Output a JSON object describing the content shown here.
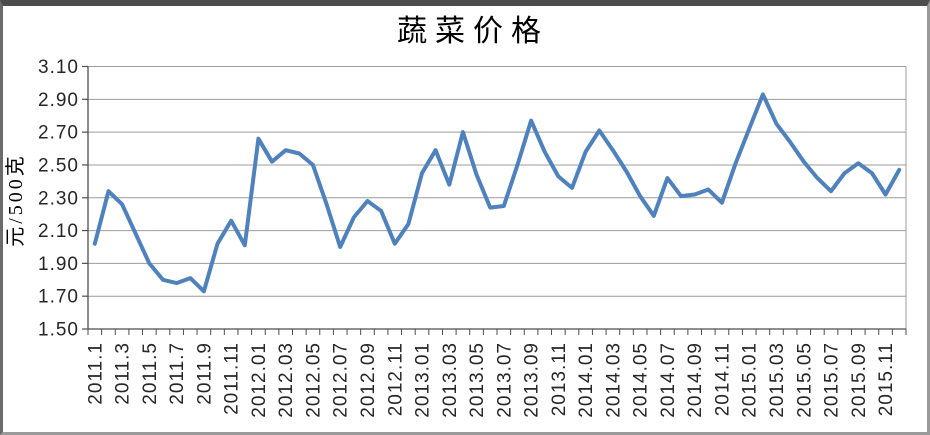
{
  "chart_data": {
    "type": "line",
    "title": "蔬菜价格",
    "xlabel": "",
    "ylabel": "元/500克",
    "ylim": [
      1.5,
      3.1
    ],
    "ytick_step": 0.2,
    "ytick_labels": [
      "3.10",
      "2.90",
      "2.70",
      "2.50",
      "2.30",
      "2.10",
      "1.90",
      "1.70",
      "1.50"
    ],
    "grid": true,
    "legend": false,
    "x_label_every": 2,
    "x_tick_labels": [
      "2011.1",
      "2011.3",
      "2011.5",
      "2011.7",
      "2011.9",
      "2011.11",
      "2012.01",
      "2012.03",
      "2012.05",
      "2012.07",
      "2012.09",
      "2012.11",
      "2013.01",
      "2013.03",
      "2013.05",
      "2013.07",
      "2013.09",
      "2013.11",
      "2014.01",
      "2014.03",
      "2014.05",
      "2014.07",
      "2014.09",
      "2014.11",
      "2015.01",
      "2015.03",
      "2015.05",
      "2015.07",
      "2015.09",
      "2015.11"
    ],
    "categories": [
      "2011.1",
      "2011.2",
      "2011.3",
      "2011.4",
      "2011.5",
      "2011.6",
      "2011.7",
      "2011.8",
      "2011.9",
      "2011.10",
      "2011.11",
      "2011.12",
      "2012.01",
      "2012.02",
      "2012.03",
      "2012.04",
      "2012.05",
      "2012.06",
      "2012.07",
      "2012.08",
      "2012.09",
      "2012.10",
      "2012.11",
      "2012.12",
      "2013.01",
      "2013.02",
      "2013.03",
      "2013.04",
      "2013.05",
      "2013.06",
      "2013.07",
      "2013.08",
      "2013.09",
      "2013.10",
      "2013.11",
      "2013.12",
      "2014.01",
      "2014.02",
      "2014.03",
      "2014.04",
      "2014.05",
      "2014.06",
      "2014.07",
      "2014.08",
      "2014.09",
      "2014.10",
      "2014.11",
      "2014.12",
      "2015.01",
      "2015.02",
      "2015.03",
      "2015.04",
      "2015.05",
      "2015.06",
      "2015.07",
      "2015.08",
      "2015.09",
      "2015.10",
      "2015.11",
      "2015.12"
    ],
    "series": [
      {
        "name": "蔬菜价格",
        "values": [
          2.02,
          2.34,
          2.26,
          2.08,
          1.9,
          1.8,
          1.78,
          1.81,
          1.73,
          2.02,
          2.16,
          2.01,
          2.66,
          2.52,
          2.59,
          2.57,
          2.5,
          2.26,
          2.0,
          2.18,
          2.28,
          2.22,
          2.02,
          2.14,
          2.45,
          2.59,
          2.38,
          2.7,
          2.44,
          2.24,
          2.25,
          2.5,
          2.77,
          2.58,
          2.43,
          2.36,
          2.58,
          2.71,
          2.59,
          2.46,
          2.31,
          2.19,
          2.42,
          2.31,
          2.32,
          2.35,
          2.27,
          2.51,
          2.72,
          2.93,
          2.75,
          2.64,
          2.52,
          2.42,
          2.34,
          2.45,
          2.51,
          2.45,
          2.32,
          2.47
        ]
      }
    ],
    "series_color": "#4F81BD",
    "gridline_color": "#9C9C9C",
    "axis_color": "#4D4D4D",
    "text_color": "#262626",
    "background": "#FFFFFF"
  }
}
